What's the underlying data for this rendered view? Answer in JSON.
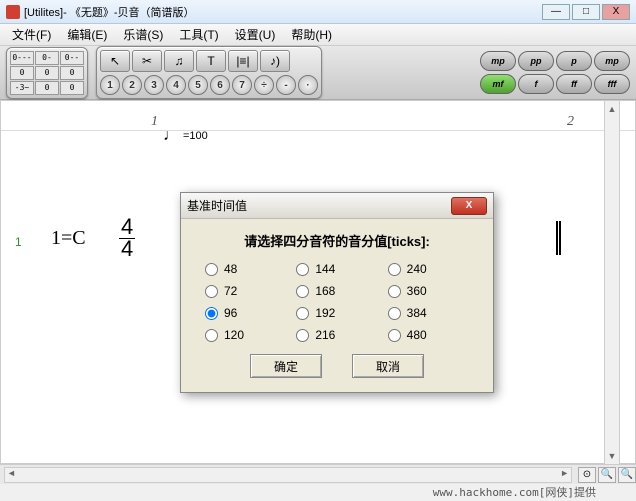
{
  "titlebar": {
    "text": "[Utilites]- 《无题》-贝音（简谱版）",
    "min": "—",
    "max": "□",
    "close": "X"
  },
  "menu": {
    "file": "文件(F)",
    "edit": "编辑(E)",
    "score": "乐谱(S)",
    "tools": "工具(T)",
    "settings": "设置(U)",
    "help": "帮助(H)"
  },
  "grid": [
    "0---",
    "0-",
    "0--",
    "0",
    "0",
    "0",
    "-3~",
    "0",
    "0"
  ],
  "toolrow1": [
    "↖",
    "✂",
    "♫",
    "T",
    "|≡|",
    "♪)"
  ],
  "numrow": [
    "1",
    "2",
    "3",
    "4",
    "5",
    "6",
    "7",
    "÷",
    "-",
    "·"
  ],
  "dynrow1": [
    "mp",
    "pp",
    "p",
    "mp"
  ],
  "dynrow2": [
    "mf",
    "f",
    "ff",
    "fff"
  ],
  "tempo": {
    "glyph": "♩",
    "value": "=100"
  },
  "ruler": {
    "m1": "1",
    "m2": "2"
  },
  "staff": {
    "measure": "1",
    "key": "1=C",
    "time_n": "4",
    "time_d": "4"
  },
  "dialog": {
    "title": "基准时间值",
    "prompt": "请选择四分音符的音分值[ticks]:",
    "options": [
      "48",
      "144",
      "240",
      "72",
      "168",
      "360",
      "96",
      "192",
      "384",
      "120",
      "216",
      "480"
    ],
    "selected": "96",
    "ok": "确定",
    "cancel": "取消",
    "close_x": "X"
  },
  "watermark": "www.hackhome.com[网侠]提供",
  "colors": {
    "accent_green": "#50a030"
  }
}
